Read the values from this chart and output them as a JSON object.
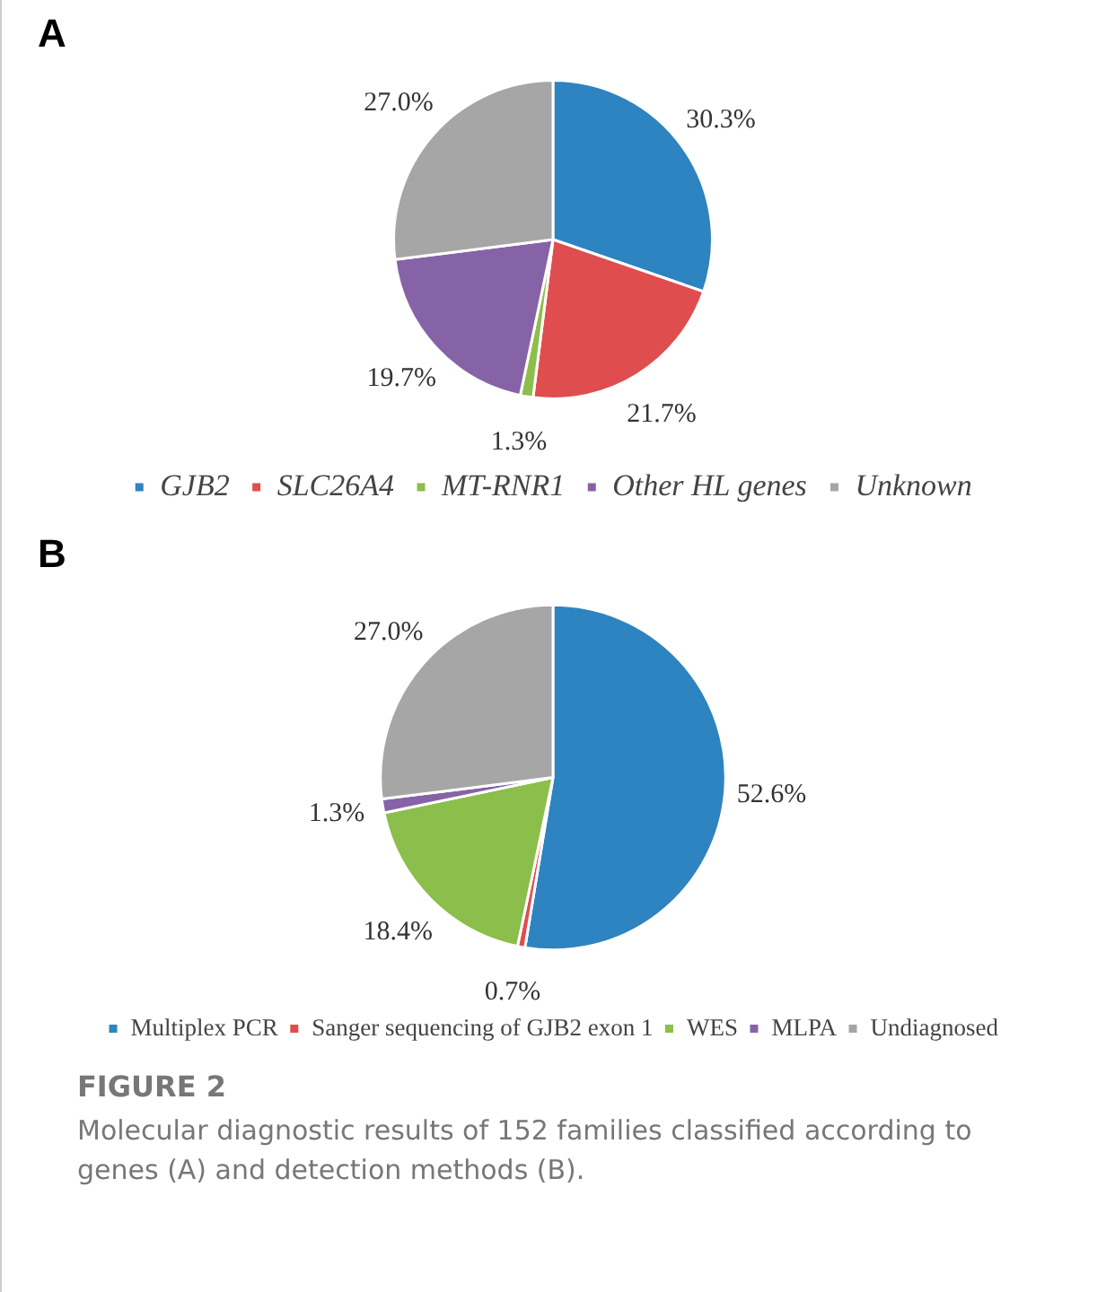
{
  "chart_data": [
    {
      "type": "pie",
      "title": "A",
      "categories": [
        "GJB2",
        "SLC26A4",
        "MT-RNR1",
        "Other HL genes",
        "Unknown"
      ],
      "values": [
        30.3,
        21.7,
        1.3,
        19.7,
        27.0
      ],
      "colors": [
        "#2e83c1",
        "#e04d4e",
        "#8bbe4b",
        "#8663a6",
        "#a6a6a6"
      ],
      "value_labels": [
        "30.3%",
        "21.7%",
        "1.3%",
        "19.7%",
        "27.0%"
      ],
      "legend": "bottom"
    },
    {
      "type": "pie",
      "title": "B",
      "categories": [
        "Multiplex PCR",
        "Sanger sequencing of GJB2 exon 1",
        "WES",
        "MLPA",
        "Undiagnosed"
      ],
      "values": [
        52.6,
        0.7,
        18.4,
        1.3,
        27.0
      ],
      "colors": [
        "#2e83c1",
        "#e04d4e",
        "#8bbe4b",
        "#8663a6",
        "#a6a6a6"
      ],
      "value_labels": [
        "52.6%",
        "0.7%",
        "18.4%",
        "1.3%",
        "27.0%"
      ],
      "legend": "bottom",
      "annotations": [
        "FIGURE 2",
        "Molecular diagnostic results of 152 families classified according to genes (A) and detection methods (B)."
      ]
    }
  ]
}
